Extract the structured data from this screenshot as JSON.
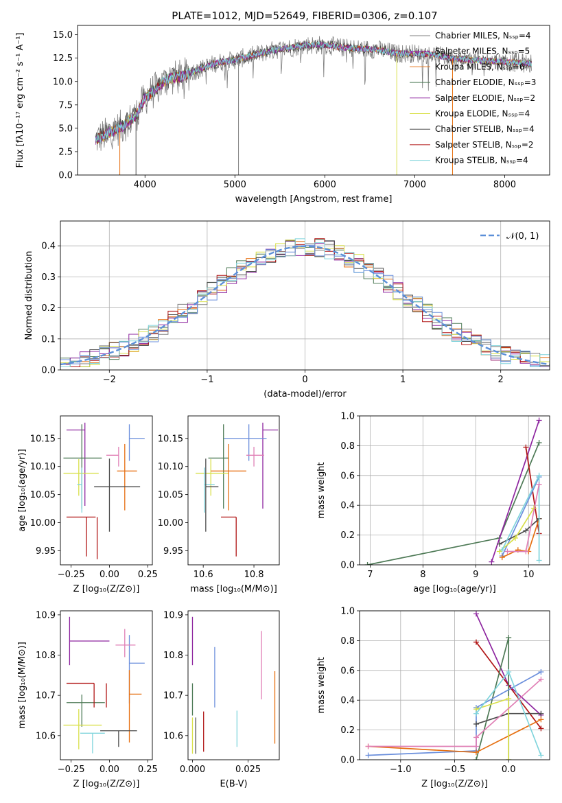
{
  "figure_title": "PLATE=1012, MJD=52649, FIBERID=0306, z=0.107",
  "colors": [
    "#7f7f7f",
    "#9c27b0",
    "#e66f10",
    "#4e7a56",
    "#8d249f",
    "#d9e04a",
    "#4a4a4a",
    "#b01414",
    "#7fd4dc"
  ],
  "chart_data": [
    {
      "id": "spectrum",
      "type": "line",
      "xlabel": "wavelength [Angstrom, rest frame]",
      "ylabel": "Flux [fλ10⁻¹⁷ erg cm⁻² s⁻¹ A⁻¹]",
      "xlim": [
        3250,
        8500
      ],
      "ylim": [
        0,
        16
      ],
      "xticks": [
        "4000",
        "5000",
        "6000",
        "7000",
        "8000"
      ],
      "yticks": [
        "0.0",
        "2.5",
        "5.0",
        "7.5",
        "10.0",
        "12.5",
        "15.0"
      ],
      "legend": [
        "Chabrier MILES, Nₛₛₚ=4",
        "Salpeter MILES, Nₛₛₚ=5",
        "Kroupa MILES, Nₛₛₚ=6",
        "Chabrier ELODIE, Nₛₛₚ=3",
        "Salpeter ELODIE, Nₛₛₚ=2",
        "Kroupa ELODIE, Nₛₛₚ=4",
        "Chabrier STELIB, Nₛₛₚ=4",
        "Salpeter STELIB, Nₛₛₚ=2",
        "Kroupa STELIB, Nₛₛₚ=4"
      ],
      "legend_placement": "upper right",
      "continuum": {
        "x": [
          3450,
          3600,
          3750,
          3900,
          4000,
          4100,
          4250,
          4400,
          4600,
          4800,
          5000,
          5200,
          5400,
          5600,
          5800,
          6000,
          6200,
          6400,
          6600,
          6800,
          7000,
          7200,
          7400,
          7600,
          7800,
          8000,
          8300
        ],
        "y": [
          3.8,
          4.5,
          5.2,
          6.4,
          8.2,
          9.0,
          10.3,
          10.5,
          11.3,
          12.0,
          12.3,
          12.8,
          13.3,
          13.6,
          13.9,
          13.9,
          13.6,
          13.5,
          13.4,
          13.0,
          13.0,
          12.9,
          12.5,
          12.3,
          12.2,
          12.1,
          11.9
        ]
      }
    },
    {
      "id": "residuals",
      "type": "histogram",
      "xlabel": "(data-model)/error",
      "ylabel": "Normed distribution",
      "xlim": [
        -2.5,
        2.5
      ],
      "ylim": [
        0,
        0.48
      ],
      "xticks": [
        "−2",
        "−1",
        "0",
        "1",
        "2"
      ],
      "yticks": [
        "0.0",
        "0.1",
        "0.2",
        "0.3",
        "0.4"
      ],
      "grid": true,
      "legend": [
        "𝒩(0, 1)"
      ],
      "legend_placement": "upper right",
      "reference_curve": "standard normal density"
    },
    {
      "id": "age-vs-z",
      "type": "errorbar",
      "xlabel": "Z [log₁₀(Z/Z⊙)]",
      "ylabel": "age  [log₁₀(age/yr)]",
      "xlim": [
        -0.32,
        0.28
      ],
      "ylim": [
        9.925,
        10.19
      ],
      "xticks": [
        "−0.25",
        "0.00",
        "0.25"
      ],
      "yticks": [
        "9.95",
        "10.00",
        "10.05",
        "10.10",
        "10.15"
      ],
      "points": [
        {
          "x": -0.16,
          "xerr": [
            0.12,
            0.0
          ],
          "y": 10.165,
          "yerr": [
            0.135,
            0.013
          ]
        },
        {
          "x": 0.13,
          "xerr": [
            0.0,
            0.1
          ],
          "y": 10.15,
          "yerr": [
            0.04,
            0.025
          ]
        },
        {
          "x": 0.06,
          "xerr": [
            0.08,
            0.0
          ],
          "y": 10.12,
          "yerr": [
            0.02,
            0.015
          ]
        },
        {
          "x": -0.18,
          "xerr": [
            0.12,
            0.13
          ],
          "y": 10.115,
          "yerr": [
            0.09,
            0.06
          ]
        },
        {
          "x": -0.2,
          "xerr": [
            0.1,
            0.13
          ],
          "y": 10.088,
          "yerr": [
            0.04,
            0.025
          ]
        },
        {
          "x": 0.1,
          "xerr": [
            0.05,
            0.08
          ],
          "y": 10.092,
          "yerr": [
            0.07,
            0.048
          ]
        },
        {
          "x": -0.18,
          "xerr": [
            0.03,
            0.0
          ],
          "y": 10.068,
          "yerr": [
            0.05,
            0.03
          ]
        },
        {
          "x": 0.0,
          "xerr": [
            0.1,
            0.2
          ],
          "y": 10.064,
          "yerr": [
            0.08,
            0.05
          ]
        },
        {
          "x": -0.15,
          "xerr": [
            0.13,
            0.06
          ],
          "y": 10.01,
          "yerr": [
            0.07,
            0.0
          ]
        }
      ]
    },
    {
      "id": "age-vs-mass",
      "type": "errorbar",
      "xlabel": "mass [log₁₀(M/M⊙)]",
      "ylabel": "",
      "xlim": [
        10.54,
        10.9
      ],
      "ylim": [
        9.925,
        10.19
      ],
      "xticks": [
        "10.6",
        "10.8"
      ],
      "yticks": [
        "9.95",
        "10.00",
        "10.05",
        "10.10",
        "10.15"
      ],
      "points": [
        {
          "x": 10.835,
          "xerr": [
            0.0,
            0.06
          ],
          "y": 10.165,
          "yerr": [
            0.14,
            0.013
          ]
        },
        {
          "x": 10.78,
          "xerr": [
            0.1,
            0.07
          ],
          "y": 10.15,
          "yerr": [
            0.04,
            0.025
          ]
        },
        {
          "x": 10.8,
          "xerr": [
            0.03,
            0.04
          ],
          "y": 10.12,
          "yerr": [
            0.02,
            0.015
          ]
        },
        {
          "x": 10.68,
          "xerr": [
            0.06,
            0.02
          ],
          "y": 10.115,
          "yerr": [
            0.09,
            0.06
          ]
        },
        {
          "x": 10.63,
          "xerr": [
            0.06,
            0.07
          ],
          "y": 10.088,
          "yerr": [
            0.04,
            0.025
          ]
        },
        {
          "x": 10.7,
          "xerr": [
            0.07,
            0.07
          ],
          "y": 10.092,
          "yerr": [
            0.07,
            0.048
          ]
        },
        {
          "x": 10.605,
          "xerr": [
            0.0,
            0.04
          ],
          "y": 10.068,
          "yerr": [
            0.05,
            0.03
          ]
        },
        {
          "x": 10.61,
          "xerr": [
            0.0,
            0.05
          ],
          "y": 10.064,
          "yerr": [
            0.08,
            0.05
          ]
        },
        {
          "x": 10.73,
          "xerr": [
            0.06,
            0.0
          ],
          "y": 10.01,
          "yerr": [
            0.07,
            0.0
          ]
        }
      ]
    },
    {
      "id": "mass-weight-vs-age",
      "type": "line",
      "xlabel": "age  [log₁₀(age/yr)]",
      "ylabel": "mass weight",
      "xlim": [
        6.8,
        10.4
      ],
      "ylim": [
        0,
        1
      ],
      "xticks": [
        "7",
        "8",
        "9",
        "10"
      ],
      "yticks": [
        "0.0",
        "0.2",
        "0.4",
        "0.6",
        "0.8",
        "1.0"
      ],
      "grid": true,
      "series": [
        {
          "color": "#4e7a56",
          "x": [
            6.95,
            9.45,
            10.2
          ],
          "y": [
            0.0,
            0.18,
            0.82
          ]
        },
        {
          "color": "#8d249f",
          "x": [
            9.3,
            10.2
          ],
          "y": [
            0.02,
            0.97
          ]
        },
        {
          "color": "#b01414",
          "x": [
            9.95,
            10.2
          ],
          "y": [
            0.79,
            0.21
          ]
        },
        {
          "color": "#6b8fdc",
          "x": [
            9.5,
            10.2
          ],
          "y": [
            0.06,
            0.59
          ]
        },
        {
          "color": "#e66f10",
          "x": [
            9.5,
            9.8,
            10.0,
            10.2
          ],
          "y": [
            0.05,
            0.1,
            0.09,
            0.31
          ]
        },
        {
          "color": "#4a4a4a",
          "x": [
            9.45,
            9.95,
            10.2
          ],
          "y": [
            0.14,
            0.23,
            0.31
          ]
        },
        {
          "color": "#d9e04a",
          "x": [
            9.45,
            9.75,
            10.1
          ],
          "y": [
            0.09,
            0.18,
            0.38
          ]
        },
        {
          "color": "#7fd4dc",
          "x": [
            9.5,
            10.2,
            10.2
          ],
          "y": [
            0.1,
            0.6,
            0.03
          ]
        },
        {
          "color": "#e07fb5",
          "x": [
            9.6,
            9.95,
            10.2
          ],
          "y": [
            0.09,
            0.09,
            0.54
          ]
        }
      ]
    },
    {
      "id": "mass-vs-z",
      "type": "errorbar",
      "xlabel": "Z [log₁₀(Z/Z⊙)]",
      "ylabel": "mass [log₁₀(M/M⊙)]",
      "xlim": [
        -0.32,
        0.28
      ],
      "ylim": [
        10.54,
        10.91
      ],
      "xticks": [
        "−0.25",
        "0.00",
        "0.25"
      ],
      "yticks": [
        "10.6",
        "10.7",
        "10.8",
        "10.9"
      ],
      "points": [
        {
          "x": -0.26,
          "xerr": [
            0.0,
            0.26
          ],
          "y": 10.835,
          "yerr": [
            0.06,
            0.06
          ]
        },
        {
          "x": 0.13,
          "xerr": [
            0.0,
            0.1
          ],
          "y": 10.78,
          "yerr": [
            0.1,
            0.07
          ]
        },
        {
          "x": 0.1,
          "xerr": [
            0.06,
            0.07
          ],
          "y": 10.825,
          "yerr": [
            0.03,
            0.04
          ]
        },
        {
          "x": -0.18,
          "xerr": [
            0.1,
            0.15
          ],
          "y": 10.682,
          "yerr": [
            0.06,
            0.02
          ]
        },
        {
          "x": -0.2,
          "xerr": [
            0.1,
            0.15
          ],
          "y": 10.626,
          "yerr": [
            0.06,
            0.04
          ]
        },
        {
          "x": 0.13,
          "xerr": [
            0.0,
            0.08
          ],
          "y": 10.703,
          "yerr": [
            0.12,
            0.06
          ]
        },
        {
          "x": -0.11,
          "xerr": [
            0.08,
            0.08
          ],
          "y": 10.606,
          "yerr": [
            0.05,
            0.0
          ]
        },
        {
          "x": 0.06,
          "xerr": [
            0.12,
            0.12
          ],
          "y": 10.612,
          "yerr": [
            0.04,
            0.0
          ]
        },
        {
          "x": -0.1,
          "xerr": [
            0.18,
            0.0
          ],
          "y": 10.73,
          "yerr": [
            0.06,
            0.0
          ]
        }
      ]
    },
    {
      "id": "mass-vs-ebv",
      "type": "errorbar",
      "xlabel": "E(B-V)",
      "ylabel": "",
      "xlim": [
        -0.002,
        0.039
      ],
      "ylim": [
        10.54,
        10.91
      ],
      "xticks": [
        "0.000",
        "0.025"
      ],
      "yticks": [
        "10.6",
        "10.7",
        "10.8",
        "10.9"
      ],
      "points": [
        {
          "x": 0.0,
          "y": 10.835,
          "yerr": [
            0.06,
            0.06
          ]
        },
        {
          "x": 0.01,
          "y": 10.745,
          "yerr": [
            0.075,
            0.075
          ]
        },
        {
          "x": 0.031,
          "y": 10.775,
          "yerr": [
            0.085,
            0.085
          ]
        },
        {
          "x": 0.0,
          "y": 10.69,
          "yerr": [
            0.04,
            0.04
          ]
        },
        {
          "x": 0.0,
          "y": 10.6,
          "yerr": [
            0.045,
            0.045
          ]
        },
        {
          "x": 0.037,
          "y": 10.67,
          "yerr": [
            0.09,
            0.09
          ]
        },
        {
          "x": 0.02,
          "y": 10.617,
          "yerr": [
            0.045,
            0.045
          ]
        },
        {
          "x": 0.0015,
          "y": 10.6,
          "yerr": [
            0.045,
            0.045
          ]
        },
        {
          "x": 0.005,
          "y": 10.61,
          "yerr": [
            0.05,
            0.05
          ]
        }
      ]
    },
    {
      "id": "mass-weight-vs-z",
      "type": "line",
      "xlabel": "Z [log₁₀(Z/Z⊙)]",
      "ylabel": "mass weight",
      "xlim": [
        -1.38,
        0.38
      ],
      "ylim": [
        0,
        1
      ],
      "xticks": [
        "−1.0",
        "−0.5",
        "0.0"
      ],
      "yticks": [
        "0.0",
        "0.2",
        "0.4",
        "0.6",
        "0.8",
        "1.0"
      ],
      "grid": true,
      "series": [
        {
          "color": "#8d249f",
          "x": [
            -0.3,
            0.0,
            0.3
          ],
          "y": [
            0.98,
            0.5,
            0.3
          ]
        },
        {
          "color": "#b01414",
          "x": [
            -0.3,
            0.3
          ],
          "y": [
            0.79,
            0.21
          ]
        },
        {
          "color": "#4e7a56",
          "x": [
            -0.3,
            0.0,
            0.0
          ],
          "y": [
            0.0,
            0.82,
            0.0
          ]
        },
        {
          "color": "#6b8fdc",
          "x": [
            -1.3,
            -0.3,
            -0.3,
            0.3
          ],
          "y": [
            0.03,
            0.06,
            0.35,
            0.59
          ]
        },
        {
          "color": "#e66f10",
          "x": [
            -1.3,
            -0.3,
            0.3
          ],
          "y": [
            0.09,
            0.05,
            0.27
          ]
        },
        {
          "color": "#4a4a4a",
          "x": [
            -0.3,
            0.0,
            0.3
          ],
          "y": [
            0.24,
            0.31,
            0.31
          ]
        },
        {
          "color": "#d9e04a",
          "x": [
            -0.3,
            0.0,
            0.0
          ],
          "y": [
            0.34,
            0.41,
            0.0
          ]
        },
        {
          "color": "#7fd4dc",
          "x": [
            -0.3,
            0.0,
            0.3
          ],
          "y": [
            0.31,
            0.59,
            0.03
          ]
        },
        {
          "color": "#e07fb5",
          "x": [
            -1.3,
            -0.3,
            -0.3,
            0.3
          ],
          "y": [
            0.09,
            0.09,
            0.15,
            0.54
          ]
        }
      ]
    }
  ]
}
